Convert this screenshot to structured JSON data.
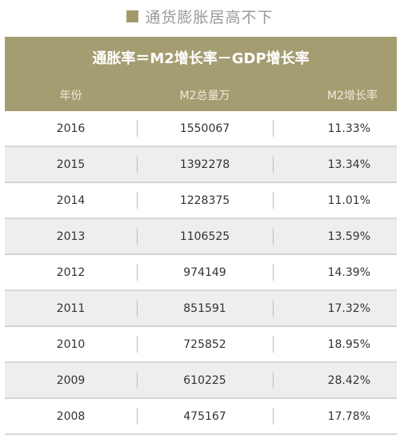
{
  "page_title": "通货膨胀居高不下",
  "table": {
    "formula": "通胀率＝M2增长率－GDP增长率",
    "columns": {
      "year": "年份",
      "m2_total": "M2总量万",
      "m2_growth": "M2增长率"
    },
    "rows": [
      {
        "year": "2016",
        "m2_total": "1550067",
        "m2_growth": "11.33%"
      },
      {
        "year": "2015",
        "m2_total": "1392278",
        "m2_growth": "13.34%"
      },
      {
        "year": "2014",
        "m2_total": "1228375",
        "m2_growth": "11.01%"
      },
      {
        "year": "2013",
        "m2_total": "1106525",
        "m2_growth": "13.59%"
      },
      {
        "year": "2012",
        "m2_total": "974149",
        "m2_growth": "14.39%"
      },
      {
        "year": "2011",
        "m2_total": "851591",
        "m2_growth": "17.32%"
      },
      {
        "year": "2010",
        "m2_total": "725852",
        "m2_growth": "18.95%"
      },
      {
        "year": "2009",
        "m2_total": "610225",
        "m2_growth": "28.42%"
      },
      {
        "year": "2008",
        "m2_total": "475167",
        "m2_growth": "17.78%"
      }
    ]
  },
  "colors": {
    "header_band": "#a59d72",
    "title_square": "#a39a6c",
    "row_shade": "#eceeef"
  }
}
